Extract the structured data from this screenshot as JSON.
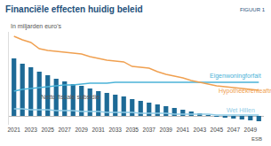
{
  "chart_data": {
    "type": "bar",
    "title": "Financiële effecten huidig beleid",
    "subtitle": "In miljarden euro's",
    "annotations": [
      "FIGUUR 1",
      "ESB"
    ],
    "categories": [
      "2021",
      null,
      "2023",
      null,
      "2025",
      null,
      "2027",
      null,
      "2029",
      null,
      "2031",
      null,
      "2033",
      null,
      "2035",
      null,
      "2037",
      null,
      "2039",
      null,
      "2041",
      null,
      "2043",
      null,
      "2045",
      null,
      "2047",
      null,
      "2049",
      null
    ],
    "series": [
      {
        "name": "Netto fiscale subsidie",
        "type": "bar",
        "color": "#1d6a96",
        "values": [
          6.5,
          5.9,
          5.5,
          5.0,
          4.6,
          4.2,
          3.9,
          3.6,
          3.4,
          3.1,
          2.8,
          2.6,
          2.4,
          2.2,
          1.9,
          1.7,
          1.5,
          1.3,
          1.1,
          0.9,
          0.7,
          0.5,
          0.3,
          0.1,
          -0.1,
          -0.2,
          -0.3,
          -0.4,
          -0.5,
          -0.6
        ]
      },
      {
        "name": "Eigenwoningforfait",
        "type": "line",
        "color": "#4bb3d8",
        "values": [
          2.8,
          3.0,
          3.1,
          3.2,
          3.3,
          3.4,
          3.5,
          3.5,
          3.6,
          3.7,
          3.7,
          3.7,
          3.8,
          3.8,
          3.8,
          3.8,
          3.8,
          3.8,
          3.8,
          3.8,
          3.8,
          3.8,
          3.8,
          3.8,
          3.8,
          3.8,
          3.8,
          3.8,
          3.8,
          3.8
        ]
      },
      {
        "name": "Hypotheekrenteaftrek",
        "type": "line",
        "color": "#f0a050",
        "values": [
          9.0,
          8.6,
          8.3,
          7.6,
          7.4,
          7.3,
          7.2,
          7.1,
          7.0,
          6.7,
          6.5,
          6.3,
          6.2,
          6.1,
          5.6,
          5.5,
          5.4,
          5.0,
          4.7,
          4.5,
          4.3,
          4.0,
          3.8,
          3.6,
          3.4,
          3.3,
          3.2,
          3.1,
          3.0,
          2.9
        ]
      },
      {
        "name": "Wet Hillen",
        "type": "line",
        "color": "#8fcbe6",
        "values": [
          0.8,
          0.8,
          0.7,
          0.7,
          0.7,
          0.6,
          0.6,
          0.6,
          0.5,
          0.5,
          0.5,
          0.4,
          0.4,
          0.4,
          0.4,
          0.3,
          0.3,
          0.3,
          0.3,
          0.2,
          0.2,
          0.2,
          0.2,
          0.2,
          0.1,
          0.1,
          0.1,
          0.1,
          0.1,
          0.1
        ]
      }
    ],
    "ylim": [
      -1,
      9.5
    ],
    "grid": false,
    "legend": false,
    "tick_labels": "x"
  }
}
